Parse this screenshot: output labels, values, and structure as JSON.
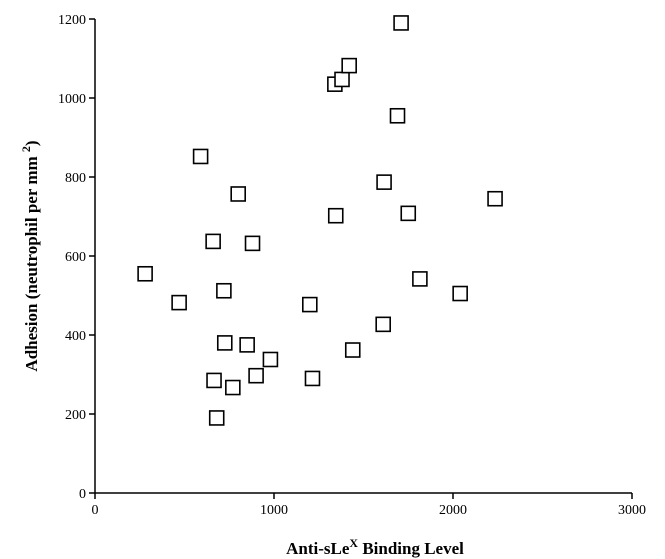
{
  "chart_data": {
    "type": "scatter",
    "xlabel": {
      "main": "Anti-sLe",
      "sup": "X",
      "rest": " Binding Level"
    },
    "ylabel": {
      "main": "Adhesion (neutrophil per mm ",
      "sup": "2",
      "rest": ")"
    },
    "xlim": [
      0,
      3000
    ],
    "ylim": [
      0,
      1200
    ],
    "xticks": [
      0,
      1000,
      2000,
      3000
    ],
    "yticks": [
      0,
      200,
      400,
      600,
      800,
      1000,
      1200
    ],
    "grid": false,
    "marker": "open-square",
    "points": [
      {
        "x": 280,
        "y": 555
      },
      {
        "x": 470,
        "y": 482
      },
      {
        "x": 590,
        "y": 852
      },
      {
        "x": 660,
        "y": 637
      },
      {
        "x": 665,
        "y": 285
      },
      {
        "x": 680,
        "y": 190
      },
      {
        "x": 720,
        "y": 512
      },
      {
        "x": 725,
        "y": 380
      },
      {
        "x": 770,
        "y": 267
      },
      {
        "x": 800,
        "y": 757
      },
      {
        "x": 850,
        "y": 375
      },
      {
        "x": 880,
        "y": 632
      },
      {
        "x": 900,
        "y": 297
      },
      {
        "x": 980,
        "y": 338
      },
      {
        "x": 1200,
        "y": 477
      },
      {
        "x": 1215,
        "y": 290
      },
      {
        "x": 1340,
        "y": 1035
      },
      {
        "x": 1345,
        "y": 702
      },
      {
        "x": 1380,
        "y": 1047
      },
      {
        "x": 1420,
        "y": 1082
      },
      {
        "x": 1440,
        "y": 362
      },
      {
        "x": 1610,
        "y": 427
      },
      {
        "x": 1615,
        "y": 787
      },
      {
        "x": 1690,
        "y": 955
      },
      {
        "x": 1710,
        "y": 1190
      },
      {
        "x": 1750,
        "y": 708
      },
      {
        "x": 1815,
        "y": 542
      },
      {
        "x": 2040,
        "y": 505
      },
      {
        "x": 2235,
        "y": 745
      }
    ]
  }
}
